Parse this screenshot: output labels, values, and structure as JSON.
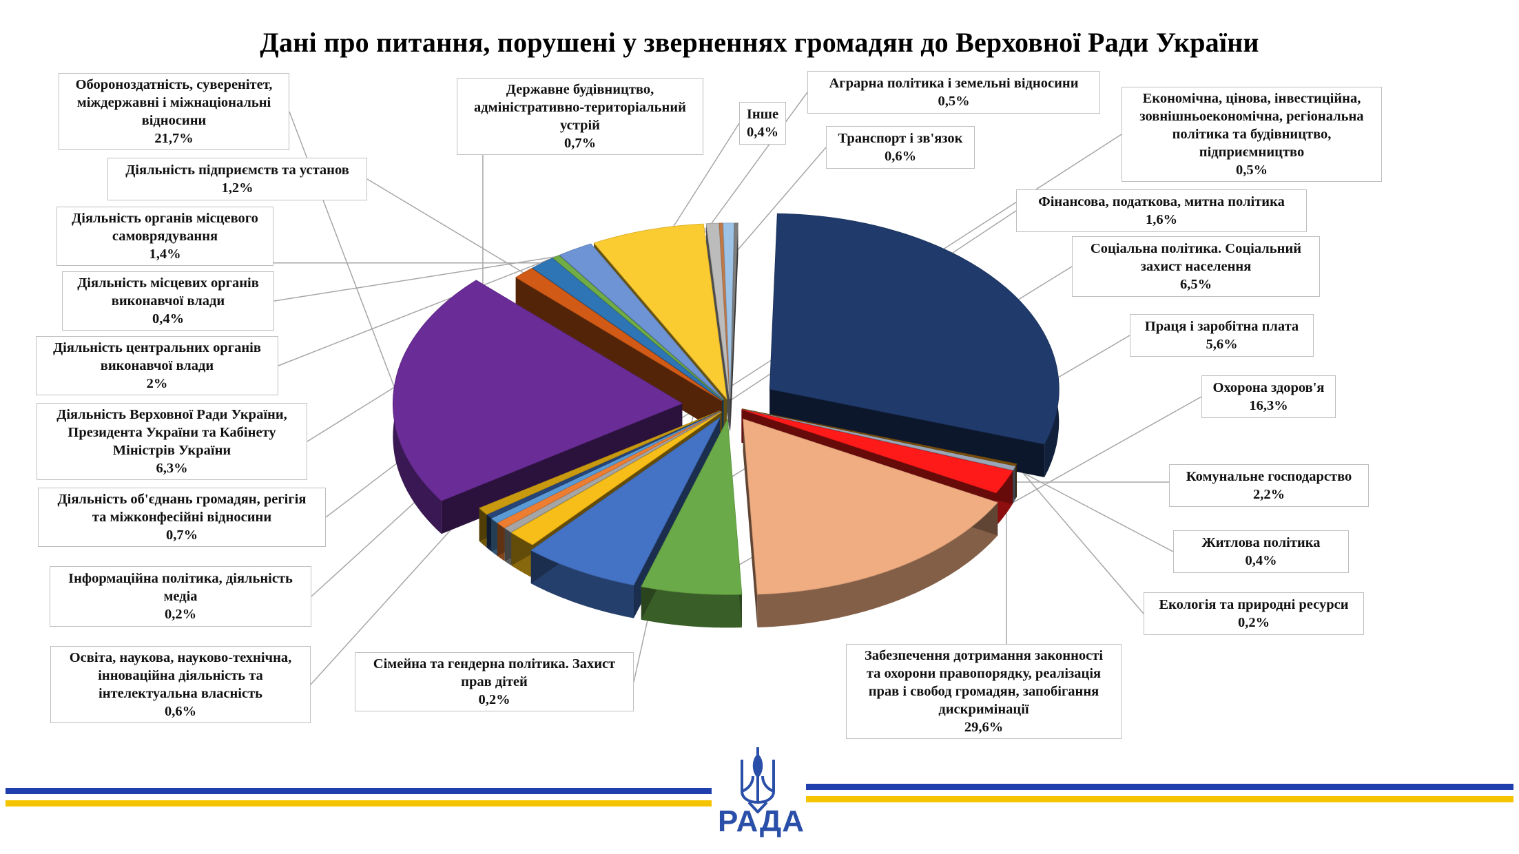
{
  "chart_data": {
    "type": "pie",
    "title": "Дані про питання, порушені у зверненнях громадян до Верховної Ради України",
    "slices": [
      {
        "label": "Житлова політика",
        "value": 0.4,
        "display": "0,4%",
        "color": "#9aa6b8"
      },
      {
        "label": "Комунальне господарство",
        "value": 2.2,
        "display": "2,2%",
        "color": "#ff1a1a"
      },
      {
        "label": "Охорона здоров'я",
        "value": 16.3,
        "display": "16,3%",
        "color": "#f0ad82"
      },
      {
        "label": "Праця і заробітна плата",
        "value": 5.6,
        "display": "5,6%",
        "color": "#6aaa48"
      },
      {
        "label": "Соціальна політика. Соціальний захист населення",
        "value": 6.5,
        "display": "6,5%",
        "color": "#4472c4"
      },
      {
        "label": "Фінансова, податкова, митна політика",
        "value": 1.6,
        "display": "1,6%",
        "color": "#f7bd18"
      },
      {
        "label": "Економічна, цінова, інвестиційна, зовнішньоекономічна, регіональна політика та будівництво, підприємництво",
        "value": 0.5,
        "display": "0,5%",
        "color": "#a5a5a5"
      },
      {
        "label": "Транспорт і зв'язок",
        "value": 0.6,
        "display": "0,6%",
        "color": "#ed7d31"
      },
      {
        "label": "Аграрна політика і земельні відносини",
        "value": 0.5,
        "display": "0,5%",
        "color": "#5b9bd5"
      },
      {
        "label": "Інше",
        "value": 0.4,
        "display": "0,4%",
        "color": "#264478"
      },
      {
        "label": "Державне будівництво, адміністративно-територіальний устрій",
        "value": 0.7,
        "display": "0,7%",
        "color": "#c99a10"
      },
      {
        "label": "Обороноздатність, суверенітет, міждержавні і міжнаціональні відносини",
        "value": 21.7,
        "display": "21,7%",
        "color": "#6a2c96"
      },
      {
        "label": "Діяльність підприємств та установ",
        "value": 1.2,
        "display": "1,2%",
        "color": "#d15b16"
      },
      {
        "label": "Діяльність органів місцевого самоврядування",
        "value": 1.4,
        "display": "1,4%",
        "color": "#2e75b6"
      },
      {
        "label": "Діяльність місцевих органів виконавчої влади",
        "value": 0.4,
        "display": "0,4%",
        "color": "#70ad47"
      },
      {
        "label": "Діяльність центральних органів виконавчої влади",
        "value": 2,
        "display": "2%",
        "color": "#6f94d6"
      },
      {
        "label": "Діяльність Верховної Ради України, Президента України та Кабінету Міністрів України",
        "value": 6.3,
        "display": "6,3%",
        "color": "#fbcc31"
      },
      {
        "label": "Діяльність об'єднань громадян, регігія та міжконфесійні відносини",
        "value": 0.7,
        "display": "0,7%",
        "color": "#bcbcbc"
      },
      {
        "label": "Інформаційна політика, діяльність медіа",
        "value": 0.2,
        "display": "0,2%",
        "color": "#c07a4a"
      },
      {
        "label": "Освіта, наукова, науково-технічна, інноваційна діяльність та інтелектуальна власність",
        "value": 0.6,
        "display": "0,6%",
        "color": "#9dc3e6"
      },
      {
        "label": "Сімейна та гендерна політика. Захист прав дітей",
        "value": 0.2,
        "display": "0,2%",
        "color": "#7f7f7f"
      },
      {
        "label": "Забезпечення дотримання законності та охорони правопорядку, реалізація прав і свобод громадян, запобігання дискримінації",
        "value": 29.6,
        "display": "29,6%",
        "color": "#1f3a6b"
      },
      {
        "label": "Екологія та природні ресурси",
        "value": 0.2,
        "display": "0,2%",
        "color": "#7a4f0c"
      }
    ]
  },
  "labels": {
    "oborona": {
      "lines": [
        "Обороноздатність, суверенітет,",
        "міждержавні і міжнаціональні",
        "відносини"
      ],
      "pct": "21,7%"
    },
    "derzhbud": {
      "lines": [
        "Державне будівництво,",
        "адміністративно-територіальний",
        "устрій"
      ],
      "pct": "0,7%"
    },
    "inshe": {
      "lines": [
        "Інше"
      ],
      "pct": "0,4%"
    },
    "agrar": {
      "lines": [
        "Аграрна політика і земельні відносини"
      ],
      "pct": "0,5%"
    },
    "ekonom": {
      "lines": [
        "Економічна, цінова, інвестиційна,",
        "зовнішньоекономічна, регіональна",
        "політика та будівництво,",
        "підприємництво"
      ],
      "pct": "0,5%"
    },
    "transport": {
      "lines": [
        "Транспорт і зв'язок"
      ],
      "pct": "0,6%"
    },
    "pidpr": {
      "lines": [
        "Діяльність підприємств та установ"
      ],
      "pct": "1,2%"
    },
    "finans": {
      "lines": [
        "Фінансова, податкова, митна політика"
      ],
      "pct": "1,6%"
    },
    "samovr": {
      "lines": [
        "Діяльність органів місцевого",
        "самоврядування"
      ],
      "pct": "1,4%"
    },
    "social": {
      "lines": [
        "Соціальна політика. Соціальний",
        "захист населення"
      ],
      "pct": "6,5%"
    },
    "mistsevi": {
      "lines": [
        "Діяльність місцевих органів",
        "виконавчої влади"
      ],
      "pct": "0,4%"
    },
    "pratsia": {
      "lines": [
        "Праця і заробітна плата"
      ],
      "pct": "5,6%"
    },
    "tsentr": {
      "lines": [
        "Діяльність центральних органів",
        "виконавчої влади"
      ],
      "pct": "2%"
    },
    "zdorovia": {
      "lines": [
        "Охорона здоров'я"
      ],
      "pct": "16,3%"
    },
    "vru": {
      "lines": [
        "Діяльність Верховної Ради України,",
        "Президента України та Кабінету",
        "Міністрів України"
      ],
      "pct": "6,3%"
    },
    "komun": {
      "lines": [
        "Комунальне господарство"
      ],
      "pct": "2,2%"
    },
    "obiedn": {
      "lines": [
        "Діяльність об'єднань громадян, регігія",
        "та міжконфесійні відносини"
      ],
      "pct": "0,7%"
    },
    "zhytlo": {
      "lines": [
        "Житлова політика"
      ],
      "pct": "0,4%"
    },
    "inform": {
      "lines": [
        "Інформаційна політика, діяльність",
        "медіа"
      ],
      "pct": "0,2%"
    },
    "ekolog": {
      "lines": [
        "Екологія та природні ресурси"
      ],
      "pct": "0,2%"
    },
    "osvita": {
      "lines": [
        "Освіта, наукова, науково-технічна,",
        "інноваційна діяльність та",
        "інтелектуальна власність"
      ],
      "pct": "0,6%"
    },
    "simeina": {
      "lines": [
        "Сімейна та гендерна політика. Захист",
        "прав дітей"
      ],
      "pct": "0,2%"
    },
    "zakon": {
      "lines": [
        "Забезпечення дотримання законності",
        "та охорони правопорядку, реалізація",
        "прав і свобод громадян, запобігання",
        "дискримінації"
      ],
      "pct": "29,6%"
    }
  },
  "logo": {
    "text": "РАДА",
    "blue": "#1f3fae",
    "yellow": "#f5c400"
  }
}
